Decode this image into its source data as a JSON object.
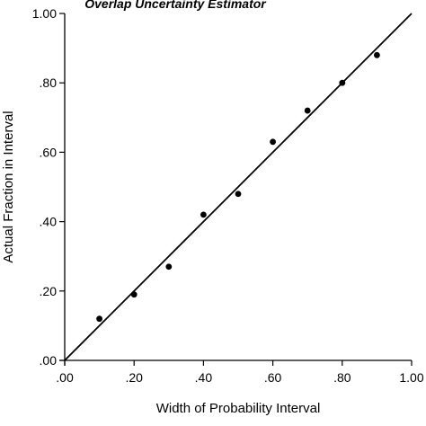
{
  "chart_data": {
    "type": "scatter",
    "title": "Overlap Uncertainty Estimator",
    "xlabel": "Width of Probability Interval",
    "ylabel": "Actual Fraction in Interval",
    "xlim": [
      0,
      1
    ],
    "ylim": [
      0,
      1
    ],
    "x_ticks": [
      0,
      0.2,
      0.4,
      0.6,
      0.8,
      1.0
    ],
    "y_ticks": [
      0,
      0.2,
      0.4,
      0.6,
      0.8,
      1.0
    ],
    "x_tick_labels": [
      ".00",
      ".20",
      ".40",
      ".60",
      ".80",
      "1.00"
    ],
    "y_tick_labels": [
      ".00",
      ".20",
      ".40",
      ".60",
      ".80",
      "1.00"
    ],
    "points": [
      {
        "x": 0.1,
        "y": 0.12
      },
      {
        "x": 0.2,
        "y": 0.19
      },
      {
        "x": 0.3,
        "y": 0.27
      },
      {
        "x": 0.4,
        "y": 0.42
      },
      {
        "x": 0.5,
        "y": 0.48
      },
      {
        "x": 0.6,
        "y": 0.63
      },
      {
        "x": 0.7,
        "y": 0.72
      },
      {
        "x": 0.8,
        "y": 0.8
      },
      {
        "x": 0.9,
        "y": 0.88
      }
    ],
    "reference_line": {
      "from": [
        0,
        0
      ],
      "to": [
        1,
        1
      ]
    },
    "grid": false,
    "legend": "none",
    "colors": {
      "marks": "#000000",
      "background": "#ffffff"
    }
  }
}
